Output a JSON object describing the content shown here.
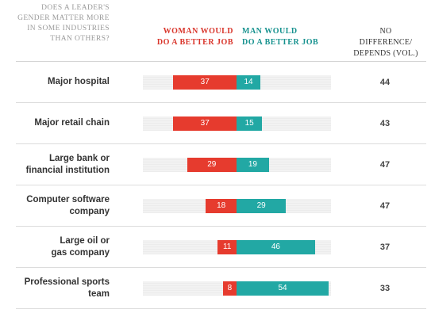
{
  "header": {
    "question": "DOES A LEADER'S GENDER MATTER MORE IN SOME INDUSTRIES THAN OTHERS?",
    "woman_label": "WOMAN WOULD DO A BETTER JOB",
    "man_label": "MAN WOULD DO A BETTER JOB",
    "no_difference_label": "NO DIFFERENCE/ DEPENDS (VOL.)"
  },
  "colors": {
    "woman": "#e63b2e",
    "man": "#22a8a4",
    "woman_header": "#d9352b",
    "man_header": "#17928f"
  },
  "chart_data": {
    "type": "bar",
    "orientation": "horizontal-diverging",
    "title": "",
    "categories": [
      "Major hospital",
      "Major retail chain",
      "Large bank or financial institution",
      "Computer software company",
      "Large oil or gas company",
      "Professional sports team"
    ],
    "series": [
      {
        "name": "WOMAN WOULD DO A BETTER JOB",
        "values": [
          37,
          37,
          29,
          18,
          11,
          8
        ]
      },
      {
        "name": "MAN WOULD DO A BETTER JOB",
        "values": [
          14,
          15,
          19,
          29,
          46,
          54
        ]
      },
      {
        "name": "NO DIFFERENCE/ DEPENDS (VOL.)",
        "values": [
          44,
          43,
          47,
          47,
          37,
          33
        ]
      }
    ],
    "grid": false
  }
}
